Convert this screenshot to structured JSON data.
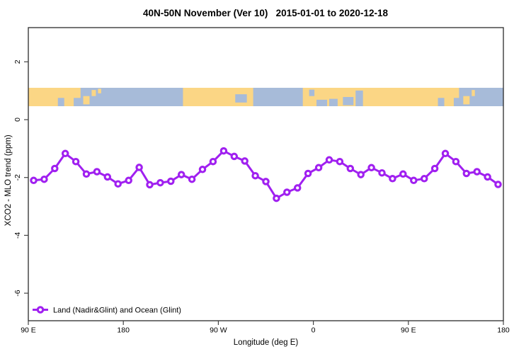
{
  "page": {
    "background": "#FFFFFF"
  },
  "chart_data": {
    "type": "line",
    "title": "40N-50N November (Ver 10)   2015-01-01 to 2020-12-18",
    "xlabel": "Longitude (deg E)",
    "ylabel": "XCO2 - MLO trend (ppm)",
    "xlim": [
      90,
      540
    ],
    "ylim": [
      -6.95,
      3.2
    ],
    "grid": false,
    "x_ticks": [
      {
        "lon": 90,
        "label": "90 E"
      },
      {
        "lon": 180,
        "label": "180"
      },
      {
        "lon": 270,
        "label": "90 W"
      },
      {
        "lon": 360,
        "label": "0"
      },
      {
        "lon": 450,
        "label": "90 E"
      },
      {
        "lon": 540,
        "label": "180"
      }
    ],
    "y_ticks": [
      {
        "value": 2,
        "label": "2"
      },
      {
        "value": 0,
        "label": "0"
      },
      {
        "value": -2,
        "label": "-2"
      },
      {
        "value": -4,
        "label": "-4"
      },
      {
        "value": -6,
        "label": "-6"
      }
    ],
    "legend": {
      "position": "bottom-left",
      "entries": [
        {
          "label": "Land (Nadir&Glint) and Ocean (Glint)",
          "color": "#A020F0",
          "marker": "open-circle"
        }
      ]
    },
    "series": [
      {
        "name": "Land (Nadir&Glint) and Ocean (Glint)",
        "color": "#A020F0",
        "x": [
          95,
          105,
          115,
          125,
          135,
          145,
          155,
          165,
          175,
          185,
          195,
          205,
          215,
          225,
          235,
          245,
          255,
          265,
          275,
          285,
          295,
          305,
          315,
          325,
          335,
          345,
          355,
          365,
          375,
          385,
          395,
          405,
          415,
          425,
          435,
          445,
          455,
          465,
          475,
          485,
          495,
          505,
          515,
          525,
          535
        ],
        "values": [
          -2.1,
          -2.06,
          -1.69,
          -1.17,
          -1.45,
          -1.88,
          -1.8,
          -1.98,
          -2.22,
          -2.1,
          -1.65,
          -2.25,
          -2.18,
          -2.13,
          -1.9,
          -2.06,
          -1.72,
          -1.45,
          -1.08,
          -1.27,
          -1.43,
          -1.94,
          -2.14,
          -2.72,
          -2.51,
          -2.36,
          -1.86,
          -1.66,
          -1.39,
          -1.45,
          -1.69,
          -1.9,
          -1.66,
          -1.84,
          -2.04,
          -1.88,
          -2.1,
          -2.04,
          -1.69,
          -1.17,
          -1.45,
          -1.86,
          -1.8,
          -1.98,
          -2.24
        ]
      }
    ],
    "map_strip": {
      "description": "land/ocean band along 40N-50N latitude",
      "land_color": "#FBD685",
      "ocean_color": "#A7BBD9",
      "value_top": 1.1,
      "value_bottom": 0.45,
      "ocean_patches": [
        {
          "l": 118,
          "r": 124,
          "t": 0.55,
          "b": 1
        },
        {
          "l": 133,
          "r": 140,
          "t": 0.55,
          "b": 1
        },
        {
          "l": 139.5,
          "r": 236.5,
          "t": 0,
          "b": 1
        },
        {
          "l": 286,
          "r": 297,
          "t": 0.35,
          "b": 0.8
        },
        {
          "l": 303,
          "r": 350,
          "t": 0,
          "b": 1
        },
        {
          "l": 356,
          "r": 361,
          "t": 0.1,
          "b": 0.45
        },
        {
          "l": 363,
          "r": 373,
          "t": 0.65,
          "b": 1
        },
        {
          "l": 375,
          "r": 383,
          "t": 0.6,
          "b": 1
        },
        {
          "l": 388,
          "r": 398,
          "t": 0.5,
          "b": 0.95
        },
        {
          "l": 400,
          "r": 407,
          "t": 0.15,
          "b": 1
        },
        {
          "l": 478,
          "r": 484,
          "t": 0.55,
          "b": 1
        },
        {
          "l": 493,
          "r": 499,
          "t": 0.55,
          "b": 1
        },
        {
          "l": 498,
          "r": 540,
          "t": 0,
          "b": 1
        }
      ],
      "land_patches": [
        {
          "l": 142,
          "r": 148,
          "t": 0.45,
          "b": 0.9
        },
        {
          "l": 150,
          "r": 154,
          "t": 0.12,
          "b": 0.45
        },
        {
          "l": 156,
          "r": 159,
          "t": 0.05,
          "b": 0.3
        },
        {
          "l": 502,
          "r": 508,
          "t": 0.45,
          "b": 0.9
        },
        {
          "l": 510,
          "r": 513,
          "t": 0.12,
          "b": 0.45
        }
      ]
    }
  }
}
